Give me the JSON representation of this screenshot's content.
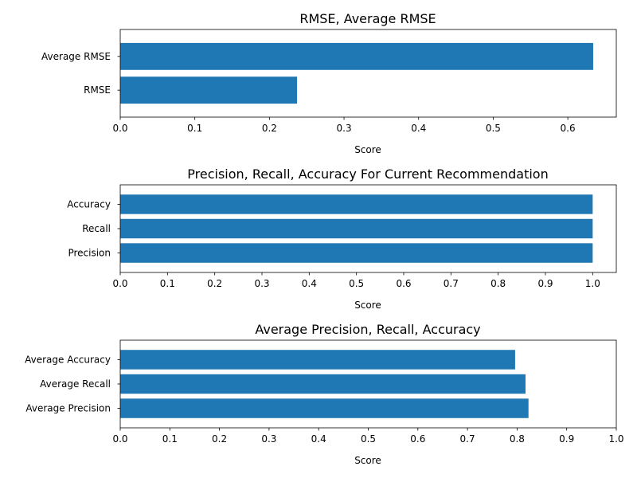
{
  "bar_color": "#1f77b4",
  "chart_data": [
    {
      "type": "bar",
      "orientation": "horizontal",
      "title": "RMSE, Average RMSE",
      "xlabel": "Score",
      "ylabel": "",
      "categories": [
        "RMSE",
        "Average RMSE"
      ],
      "values": [
        0.237,
        0.634
      ],
      "xlim": [
        0,
        0.665
      ],
      "xticks": [
        0.0,
        0.1,
        0.2,
        0.3,
        0.4,
        0.5,
        0.6
      ],
      "xtick_labels": [
        "0.0",
        "0.1",
        "0.2",
        "0.3",
        "0.4",
        "0.5",
        "0.6"
      ],
      "grid": false,
      "legend": "none"
    },
    {
      "type": "bar",
      "orientation": "horizontal",
      "title": "Precision, Recall, Accuracy For Current Recommendation",
      "xlabel": "Score",
      "ylabel": "",
      "categories": [
        "Precision",
        "Recall",
        "Accuracy"
      ],
      "values": [
        1.0,
        1.0,
        1.0
      ],
      "xlim": [
        0,
        1.05
      ],
      "xticks": [
        0.0,
        0.1,
        0.2,
        0.3,
        0.4,
        0.5,
        0.6,
        0.7,
        0.8,
        0.9,
        1.0
      ],
      "xtick_labels": [
        "0.0",
        "0.1",
        "0.2",
        "0.3",
        "0.4",
        "0.5",
        "0.6",
        "0.7",
        "0.8",
        "0.9",
        "1.0"
      ],
      "grid": false,
      "legend": "none"
    },
    {
      "type": "bar",
      "orientation": "horizontal",
      "title": "Average Precision, Recall, Accuracy",
      "xlabel": "Score",
      "ylabel": "",
      "categories": [
        "Average Precision",
        "Average Recall",
        "Average Accuracy"
      ],
      "values": [
        0.823,
        0.817,
        0.796
      ],
      "xlim": [
        0,
        1.0
      ],
      "xticks": [
        0.0,
        0.1,
        0.2,
        0.3,
        0.4,
        0.5,
        0.6,
        0.7,
        0.8,
        0.9,
        1.0
      ],
      "xtick_labels": [
        "0.0",
        "0.1",
        "0.2",
        "0.3",
        "0.4",
        "0.5",
        "0.6",
        "0.7",
        "0.8",
        "0.9",
        "1.0"
      ],
      "grid": false,
      "legend": "none"
    }
  ]
}
